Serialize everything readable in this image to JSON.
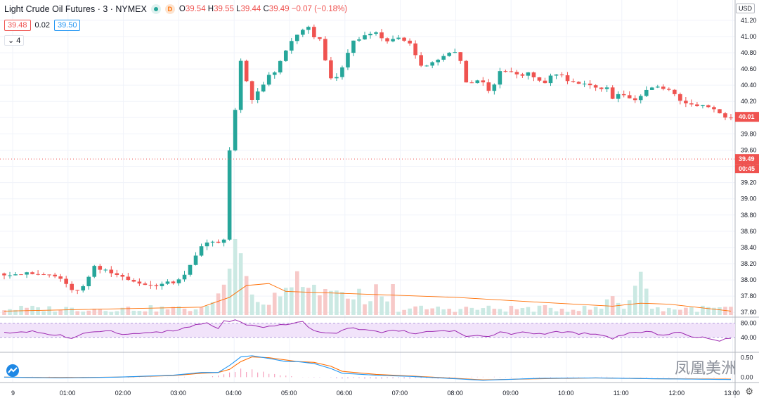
{
  "header": {
    "symbol_title": "Light Crude Oil Futures · 3 · NYMEX",
    "open_label": "O",
    "open": "39.54",
    "high_label": "H",
    "high": "39.55",
    "low_label": "L",
    "low": "39.44",
    "close_label": "C",
    "close": "39.49",
    "change": "−0.07 (−0.18%)",
    "bid": "39.48",
    "spread": "0.02",
    "ask": "39.50",
    "collapse_label": "4",
    "currency": "USD",
    "status_icon": "green-dot-icon",
    "delayed_badge": "D"
  },
  "watermark": "凤凰美洲",
  "colors": {
    "up": "#26a69a",
    "down": "#ef5350",
    "rsi": "#9c27b0",
    "macd_line": "#2196f3",
    "signal_line": "#ff6d00",
    "hist": "#e91e63"
  },
  "chart_data": {
    "type": "candlestick",
    "price_axis": {
      "min": 37.55,
      "max": 41.45,
      "ticks": [
        "41.20",
        "41.00",
        "40.80",
        "40.60",
        "40.40",
        "40.20",
        "40.00",
        "39.80",
        "39.60",
        "39.40",
        "39.20",
        "39.00",
        "38.80",
        "38.60",
        "38.40",
        "38.20",
        "38.00",
        "37.80",
        "37.60"
      ]
    },
    "last_price_label": "40.01",
    "crosshair_price_label": "39.49",
    "countdown_label": "00:45",
    "time_ticks": [
      "9",
      "01:00",
      "02:00",
      "03:00",
      "04:00",
      "05:00",
      "06:00",
      "07:00",
      "08:00",
      "09:00",
      "10:00",
      "11:00",
      "12:00",
      "13:00"
    ],
    "price_path": [
      [
        0,
        38.08
      ],
      [
        5,
        38.07
      ],
      [
        8,
        38.06
      ],
      [
        10,
        38.02
      ],
      [
        11,
        37.93
      ],
      [
        12,
        37.86
      ],
      [
        14,
        37.91
      ],
      [
        16,
        38.15
      ],
      [
        20,
        38.06
      ],
      [
        23,
        38.0
      ],
      [
        25,
        37.92
      ],
      [
        28,
        37.95
      ],
      [
        31,
        38.0
      ],
      [
        32.5,
        38.13
      ],
      [
        33.5,
        38.25
      ],
      [
        34.5,
        38.38
      ],
      [
        36,
        38.45
      ],
      [
        38,
        38.46
      ],
      [
        39,
        38.5
      ],
      [
        39.5,
        38.85
      ],
      [
        40,
        39.6
      ],
      [
        40.5,
        39.95
      ],
      [
        41,
        40.1
      ],
      [
        42,
        40.72
      ],
      [
        43,
        40.45
      ],
      [
        44,
        40.22
      ],
      [
        45,
        40.3
      ],
      [
        46.5,
        40.48
      ],
      [
        48,
        40.55
      ],
      [
        50,
        40.82
      ],
      [
        51,
        40.95
      ],
      [
        53,
        41.1
      ],
      [
        53.5,
        41.25
      ],
      [
        54.5,
        41.0
      ],
      [
        56,
        40.95
      ],
      [
        57,
        40.7
      ],
      [
        58,
        40.5
      ],
      [
        59,
        40.48
      ],
      [
        60,
        40.6
      ],
      [
        61,
        40.78
      ],
      [
        62,
        40.95
      ],
      [
        64,
        41.0
      ],
      [
        66,
        41.05
      ],
      [
        68,
        40.93
      ],
      [
        70,
        40.98
      ],
      [
        72,
        40.9
      ],
      [
        73,
        40.75
      ],
      [
        74,
        40.65
      ],
      [
        75,
        40.62
      ],
      [
        77,
        40.73
      ],
      [
        79,
        40.78
      ],
      [
        80,
        40.82
      ],
      [
        81,
        40.68
      ],
      [
        82,
        40.45
      ],
      [
        83,
        40.45
      ],
      [
        85,
        40.42
      ],
      [
        86,
        40.33
      ],
      [
        87,
        40.4
      ],
      [
        88,
        40.55
      ],
      [
        89,
        40.58
      ],
      [
        91,
        40.52
      ],
      [
        93,
        40.55
      ],
      [
        95,
        40.45
      ],
      [
        96,
        40.45
      ],
      [
        97,
        40.52
      ],
      [
        99,
        40.5
      ],
      [
        101,
        40.45
      ],
      [
        103,
        40.4
      ],
      [
        105,
        40.35
      ],
      [
        107,
        40.35
      ],
      [
        108,
        40.24
      ],
      [
        110,
        40.3
      ],
      [
        112,
        40.2
      ],
      [
        114,
        40.35
      ],
      [
        116,
        40.4
      ],
      [
        118,
        40.35
      ],
      [
        120,
        40.2
      ],
      [
        122,
        40.15
      ],
      [
        124,
        40.15
      ],
      [
        126,
        40.1
      ],
      [
        128,
        40.02
      ],
      [
        129,
        40.01
      ]
    ],
    "volume_peaks": [
      [
        38,
        12
      ],
      [
        39,
        25
      ],
      [
        40,
        45
      ],
      [
        41,
        72
      ],
      [
        42,
        60
      ],
      [
        43,
        30
      ],
      [
        52,
        40
      ],
      [
        55,
        28
      ],
      [
        60,
        22
      ],
      [
        108,
        18
      ],
      [
        112,
        22
      ],
      [
        113,
        40
      ]
    ],
    "volume_ma_path": [
      [
        0,
        4
      ],
      [
        35,
        8
      ],
      [
        40,
        18
      ],
      [
        43,
        30
      ],
      [
        47,
        32
      ],
      [
        50,
        24
      ],
      [
        60,
        22
      ],
      [
        80,
        18
      ],
      [
        95,
        13
      ],
      [
        108,
        9
      ],
      [
        113,
        12
      ],
      [
        118,
        11
      ],
      [
        129,
        4
      ]
    ],
    "rsi": {
      "levels": [
        "80.00",
        "40.00"
      ],
      "ticks": [
        "80.00",
        "40.00"
      ],
      "path": [
        [
          0,
          52
        ],
        [
          5,
          58
        ],
        [
          8,
          48
        ],
        [
          10,
          46
        ],
        [
          12,
          35
        ],
        [
          15,
          55
        ],
        [
          18,
          60
        ],
        [
          22,
          48
        ],
        [
          26,
          54
        ],
        [
          30,
          58
        ],
        [
          33,
          70
        ],
        [
          36,
          80
        ],
        [
          38,
          65
        ],
        [
          39,
          85
        ],
        [
          41,
          88
        ],
        [
          43,
          75
        ],
        [
          46,
          66
        ],
        [
          50,
          78
        ],
        [
          53,
          82
        ],
        [
          55,
          60
        ],
        [
          57,
          50
        ],
        [
          59,
          54
        ],
        [
          62,
          68
        ],
        [
          65,
          58
        ],
        [
          68,
          55
        ],
        [
          71,
          62
        ],
        [
          73,
          48
        ],
        [
          75,
          55
        ],
        [
          78,
          60
        ],
        [
          80,
          58
        ],
        [
          82,
          42
        ],
        [
          84,
          46
        ],
        [
          86,
          40
        ],
        [
          88,
          55
        ],
        [
          90,
          50
        ],
        [
          92,
          54
        ],
        [
          95,
          50
        ],
        [
          98,
          55
        ],
        [
          100,
          54
        ],
        [
          103,
          50
        ],
        [
          106,
          45
        ],
        [
          108,
          38
        ],
        [
          111,
          52
        ],
        [
          114,
          55
        ],
        [
          117,
          48
        ],
        [
          120,
          55
        ],
        [
          122,
          40
        ],
        [
          125,
          38
        ],
        [
          127,
          32
        ],
        [
          129,
          35
        ]
      ]
    },
    "macd": {
      "ticks": [
        "0.50",
        "0.00"
      ],
      "macd_path": [
        [
          0,
          0
        ],
        [
          10,
          -0.02
        ],
        [
          20,
          0
        ],
        [
          30,
          0.05
        ],
        [
          35,
          0.12
        ],
        [
          38,
          0.12
        ],
        [
          40,
          0.3
        ],
        [
          42,
          0.52
        ],
        [
          44,
          0.55
        ],
        [
          47,
          0.48
        ],
        [
          50,
          0.4
        ],
        [
          52,
          0.4
        ],
        [
          55,
          0.35
        ],
        [
          58,
          0.22
        ],
        [
          60,
          0.1
        ],
        [
          66,
          0.05
        ],
        [
          72,
          0.02
        ],
        [
          80,
          -0.04
        ],
        [
          85,
          -0.08
        ],
        [
          95,
          -0.03
        ],
        [
          105,
          -0.02
        ],
        [
          115,
          -0.04
        ],
        [
          129,
          -0.06
        ]
      ],
      "signal_path": [
        [
          0,
          0
        ],
        [
          10,
          -0.01
        ],
        [
          20,
          0
        ],
        [
          30,
          0.04
        ],
        [
          35,
          0.1
        ],
        [
          38,
          0.12
        ],
        [
          40,
          0.2
        ],
        [
          42,
          0.4
        ],
        [
          44,
          0.52
        ],
        [
          47,
          0.5
        ],
        [
          50,
          0.44
        ],
        [
          52,
          0.4
        ],
        [
          55,
          0.38
        ],
        [
          58,
          0.28
        ],
        [
          60,
          0.15
        ],
        [
          66,
          0.07
        ],
        [
          72,
          0.03
        ],
        [
          80,
          -0.03
        ],
        [
          85,
          -0.07
        ],
        [
          95,
          -0.04
        ],
        [
          105,
          -0.02
        ],
        [
          115,
          -0.04
        ],
        [
          129,
          -0.05
        ]
      ],
      "hist_peaks": [
        [
          38,
          0.04
        ],
        [
          40,
          0.12
        ],
        [
          42,
          0.22
        ],
        [
          44,
          0.2
        ],
        [
          46,
          0.14
        ],
        [
          48,
          0.08
        ],
        [
          50,
          0.04
        ]
      ]
    }
  }
}
